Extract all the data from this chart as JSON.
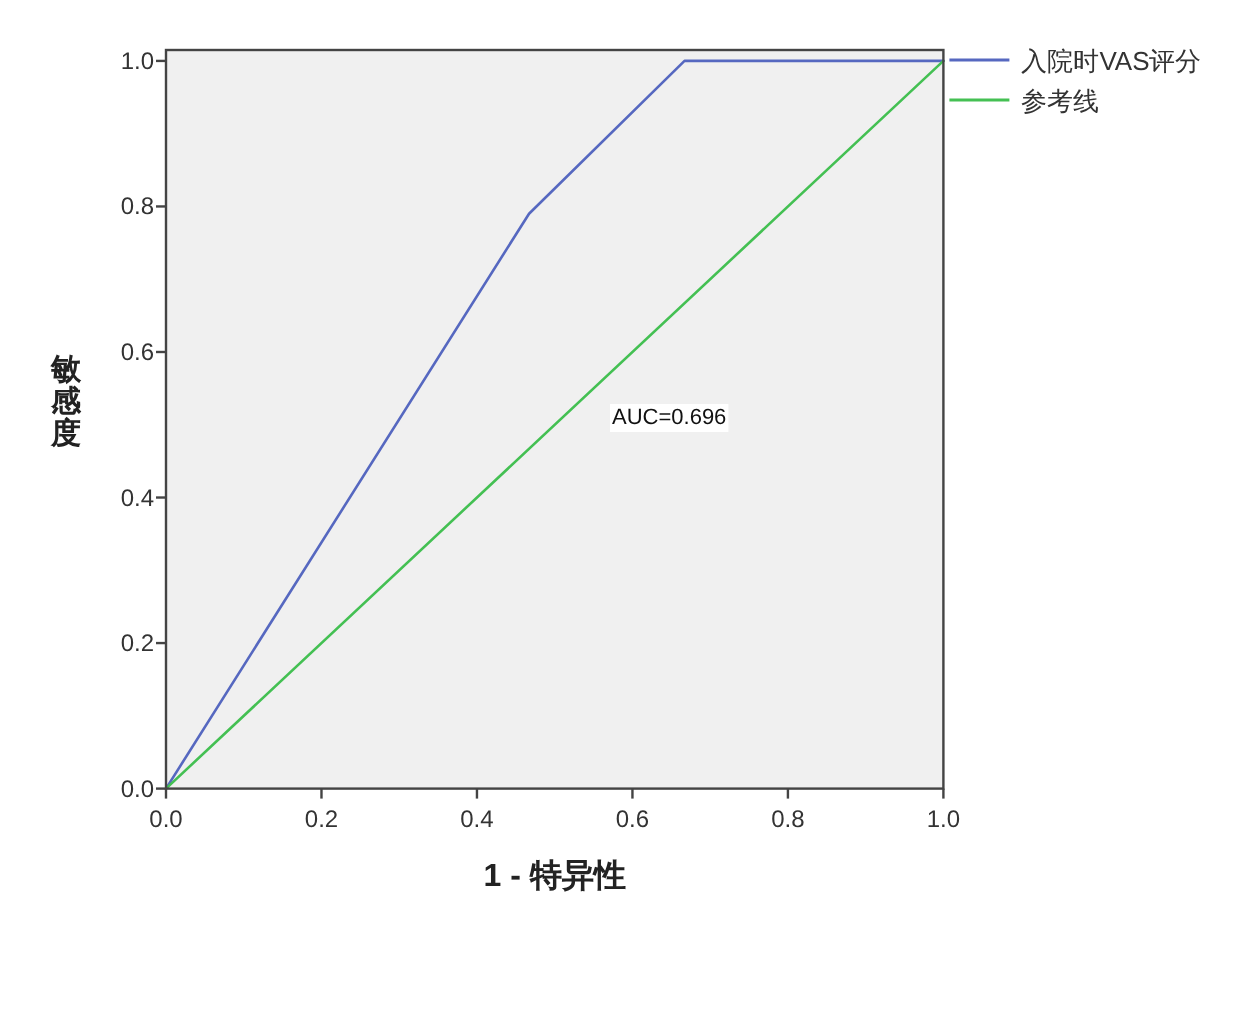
{
  "chart_data": {
    "type": "line",
    "xlabel": "1 - 特异性",
    "ylabel": "敏感度",
    "series": [
      {
        "name": "入院时VAS评分",
        "color": "#5668c0",
        "x": [
          0,
          0.467,
          0.667,
          1
        ],
        "values": [
          0,
          0.79,
          1,
          1
        ]
      },
      {
        "name": "参考线",
        "color": "#44c053",
        "x": [
          0,
          1
        ],
        "values": [
          0,
          1
        ]
      }
    ],
    "xlim": [
      0,
      1
    ],
    "ylim": [
      0,
      1.015
    ],
    "xticks": [
      {
        "value": 0,
        "label": "0.0"
      },
      0.2,
      0.4,
      0.6,
      0.8,
      {
        "value": 1,
        "label": "1.0"
      }
    ],
    "yticks": [
      {
        "value": 0,
        "label": "0.0"
      },
      0.2,
      0.4,
      0.6,
      0.8,
      {
        "value": 1,
        "label": "1.0"
      }
    ],
    "annotations": [
      "AUC=0.696"
    ],
    "legend": "right"
  }
}
